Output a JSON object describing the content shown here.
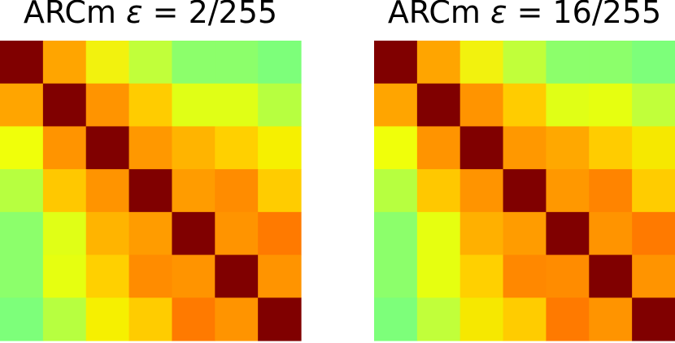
{
  "chart_data": [
    {
      "type": "heatmap",
      "title": {
        "prefix": "ARCm ",
        "symbol": "ε",
        "suffix": " = 2/255"
      },
      "size": 7,
      "colors": [
        [
          "#800000",
          "#ffa500",
          "#f2f20e",
          "#c1ff3a",
          "#8cff6b",
          "#8cff6b",
          "#7dff7a"
        ],
        [
          "#ffa500",
          "#800000",
          "#ff9400",
          "#ffcc00",
          "#e0ff16",
          "#e0ff16",
          "#b7ff40"
        ],
        [
          "#f0ff0a",
          "#ff9400",
          "#800000",
          "#ff9800",
          "#ffb400",
          "#ffd000",
          "#f6f000"
        ],
        [
          "#b7ff40",
          "#ffc800",
          "#ff9400",
          "#800000",
          "#ff9c00",
          "#ff8c00",
          "#ffcc00"
        ],
        [
          "#8cff6b",
          "#e0ff16",
          "#ffb400",
          "#ff9c00",
          "#800000",
          "#ff9400",
          "#ff7a00"
        ],
        [
          "#8cff6b",
          "#e6ff10",
          "#ffd000",
          "#ff8c00",
          "#ff9400",
          "#800000",
          "#ff9400"
        ],
        [
          "#7dff7a",
          "#b7ff40",
          "#f6f000",
          "#ffcc00",
          "#ff7a00",
          "#ff9400",
          "#800000"
        ]
      ]
    },
    {
      "type": "heatmap",
      "title": {
        "prefix": "ARCm ",
        "symbol": "ε",
        "suffix": " = 16/255"
      },
      "size": 7,
      "colors": [
        [
          "#800000",
          "#ffa500",
          "#f2f20e",
          "#c1ff3a",
          "#8cff6b",
          "#8cff6b",
          "#7dff7a"
        ],
        [
          "#ffa500",
          "#800000",
          "#ff9400",
          "#ffcc00",
          "#e0ff16",
          "#e6ff10",
          "#c1ff3a"
        ],
        [
          "#f0ff0a",
          "#ff9400",
          "#800000",
          "#ff9800",
          "#ffa800",
          "#ffcc00",
          "#f6e800"
        ],
        [
          "#b7ff40",
          "#ffc800",
          "#ff9400",
          "#800000",
          "#ff9800",
          "#ff8400",
          "#ffcc00"
        ],
        [
          "#8cff6b",
          "#e6ff10",
          "#ffb000",
          "#ff9c00",
          "#800000",
          "#ff9400",
          "#ff7a00"
        ],
        [
          "#8cff6b",
          "#e6ff10",
          "#ffd000",
          "#ff8800",
          "#ff8c00",
          "#800000",
          "#ff9400"
        ],
        [
          "#7dff7a",
          "#c1ff3a",
          "#f6e800",
          "#ffcc00",
          "#ff7a00",
          "#ff9400",
          "#800000"
        ]
      ]
    }
  ]
}
